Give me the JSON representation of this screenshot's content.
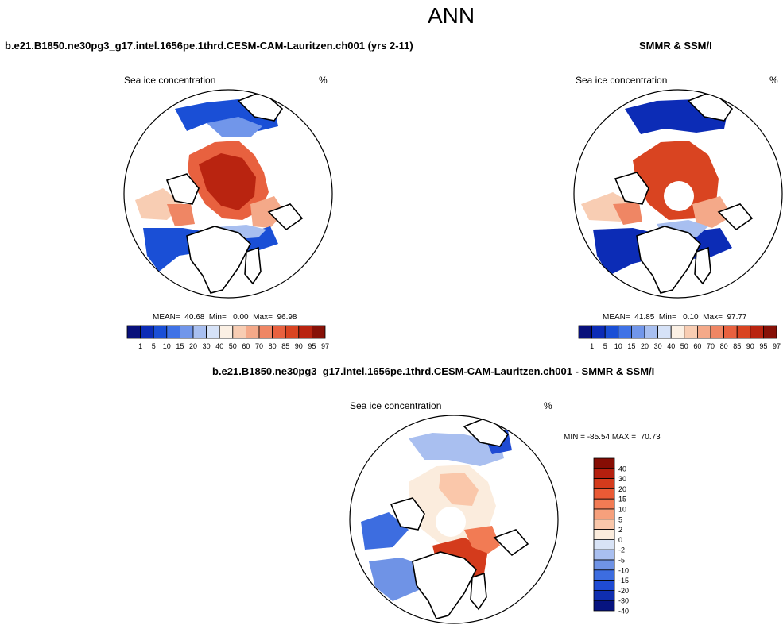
{
  "title": "ANN",
  "case_title": "b.e21.B1850.ne30pg3_g17.intel.1656pe.1thrd.CESM-CAM-Lauritzen.ch001 (yrs 2-11)",
  "obs_title": "SMMR & SSM/I",
  "diff_title": "b.e21.B1850.ne30pg3_g17.intel.1656pe.1thrd.CESM-CAM-Lauritzen.ch001 - SMMR & SSM/I",
  "panels": {
    "left": {
      "label": "Sea ice concentration",
      "units": "%",
      "stats": "MEAN=  40.68  Min=   0.00  Max=  96.98"
    },
    "right": {
      "label": "Sea ice concentration",
      "units": "%",
      "stats": "MEAN=  41.85  Min=   0.10  Max=  97.77"
    },
    "diff": {
      "label": "Sea ice concentration",
      "units": "%",
      "minmax": "MIN = -85.54 MAX =  70.73"
    }
  },
  "colors": {
    "abs": [
      "#08107a",
      "#0c2cb6",
      "#1a4fd6",
      "#3f72e6",
      "#7196ea",
      "#a8bff0",
      "#d6e2f7",
      "#fbf0e4",
      "#f8cdb3",
      "#f4a989",
      "#ef8664",
      "#e8613f",
      "#d94421",
      "#b92410",
      "#871107"
    ],
    "diff": [
      "#860d04",
      "#b41f0e",
      "#d43b1c",
      "#ea5a35",
      "#f27b54",
      "#f6a07c",
      "#fac7aa",
      "#fbecdd",
      "#d8e3f6",
      "#a9bff0",
      "#6f93e6",
      "#3d6de0",
      "#1f4bd4",
      "#0f2eb0",
      "#071480"
    ]
  },
  "chart_data": [
    {
      "type": "heatmap",
      "title": "Sea ice concentration",
      "subtitle": "b.e21.B1850.ne30pg3_g17.intel.1656pe.1thrd.CESM-CAM-Lauritzen.ch001 (yrs 2-11)",
      "units": "%",
      "projection": "north polar stereographic",
      "colorbar_ticks": [
        "1",
        "5",
        "10",
        "15",
        "20",
        "30",
        "40",
        "50",
        "60",
        "70",
        "80",
        "85",
        "90",
        "95",
        "97"
      ],
      "mean": 40.68,
      "min": 0.0,
      "max": 96.98
    },
    {
      "type": "heatmap",
      "title": "Sea ice concentration",
      "subtitle": "SMMR & SSM/I",
      "units": "%",
      "projection": "north polar stereographic",
      "colorbar_ticks": [
        "1",
        "5",
        "10",
        "15",
        "20",
        "30",
        "40",
        "50",
        "60",
        "70",
        "80",
        "85",
        "90",
        "95",
        "97"
      ],
      "mean": 41.85,
      "min": 0.1,
      "max": 97.77
    },
    {
      "type": "heatmap",
      "title": "Sea ice concentration",
      "subtitle": "b.e21.B1850.ne30pg3_g17.intel.1656pe.1thrd.CESM-CAM-Lauritzen.ch001 - SMMR & SSM/I",
      "units": "%",
      "projection": "north polar stereographic",
      "colorbar_ticks": [
        "40",
        "30",
        "20",
        "15",
        "10",
        "5",
        "2",
        "0",
        "-2",
        "-5",
        "-10",
        "-15",
        "-20",
        "-30",
        "-40"
      ],
      "min": -85.54,
      "max": 70.73
    }
  ]
}
